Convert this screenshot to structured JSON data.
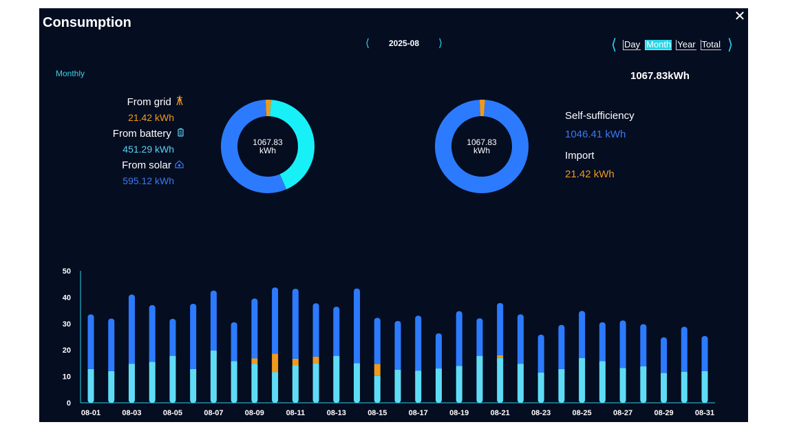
{
  "header": {
    "title": "Consumption",
    "close_icon": "close-icon"
  },
  "date_nav": {
    "label": "2025-08"
  },
  "range": {
    "options": [
      "Day",
      "Month",
      "Year",
      "Total"
    ],
    "active": "Month"
  },
  "monthly_label": "Monthly",
  "total_value": "1067.83kWh",
  "sources": [
    {
      "title": "From grid",
      "value": "21.42 kWh",
      "icon": "power-tower-icon",
      "color": "#ef9a1e"
    },
    {
      "title": "From battery",
      "value": "451.29 kWh",
      "icon": "battery-icon",
      "color": "#59d3ee"
    },
    {
      "title": "From solar",
      "value": "595.12 kWh",
      "icon": "house-solar-icon",
      "color": "#3a7af0"
    }
  ],
  "donut1": {
    "value": "1067.83",
    "unit": "kWh",
    "segments": [
      21.42,
      451.29,
      595.12
    ],
    "colors": [
      "#ef9a1e",
      "#18f0f8",
      "#2c7bff"
    ]
  },
  "donut2": {
    "value": "1067.83",
    "unit": "kWh",
    "segments": [
      21.42,
      1046.41
    ],
    "colors": [
      "#ef9a1e",
      "#2c7bff"
    ]
  },
  "summary": {
    "self_title": "Self-sufficiency",
    "self_value": "1046.41 kWh",
    "import_title": "Import",
    "import_value": "21.42 kWh"
  },
  "colors": {
    "solar": "#2c7bff",
    "battery": "#5fdcf5",
    "grid": "#ef9a1e",
    "accent": "#2ad4e6"
  },
  "chart_data": {
    "type": "bar",
    "stacked": true,
    "ylim": [
      0,
      50
    ],
    "yticks": [
      0,
      10,
      20,
      30,
      40,
      50
    ],
    "categories": [
      "08-01",
      "08-02",
      "08-03",
      "08-04",
      "08-05",
      "08-06",
      "08-07",
      "08-08",
      "08-09",
      "08-10",
      "08-11",
      "08-12",
      "08-13",
      "08-14",
      "08-15",
      "08-16",
      "08-17",
      "08-18",
      "08-19",
      "08-20",
      "08-21",
      "08-22",
      "08-23",
      "08-24",
      "08-25",
      "08-26",
      "08-27",
      "08-28",
      "08-29",
      "08-30",
      "08-31"
    ],
    "tick_labels": [
      "08-01",
      "08-03",
      "08-05",
      "08-07",
      "08-09",
      "08-11",
      "08-13",
      "08-15",
      "08-17",
      "08-19",
      "08-21",
      "08-23",
      "08-25",
      "08-27",
      "08-29",
      "08-31"
    ],
    "series": [
      {
        "values": [
          12.8,
          12,
          14.8,
          15.5,
          17.8,
          12.8,
          19.8,
          15.8,
          14.8,
          11.6,
          14.2,
          15,
          17.8,
          15,
          10.2,
          12.5,
          12.2,
          13,
          14,
          17.8,
          17,
          14.8,
          11.5,
          12.8,
          17,
          15.8,
          13.2,
          13.8,
          11.3,
          11.8,
          12
        ]
      },
      {
        "values": [
          0,
          0,
          0,
          0,
          0,
          0,
          0,
          0,
          2,
          7,
          2.5,
          2.5,
          0,
          0,
          4.5,
          0,
          0,
          0,
          0,
          0,
          1,
          0,
          0,
          0,
          0,
          0,
          0,
          0,
          0,
          0,
          0
        ]
      },
      {
        "values": [
          20.7,
          19.9,
          26.2,
          21.5,
          14,
          24.7,
          22.7,
          14.7,
          22.7,
          25.1,
          26.5,
          20.2,
          18.6,
          28.3,
          17.5,
          18.5,
          20.8,
          13.3,
          20.7,
          14.2,
          19.8,
          18.7,
          14.3,
          16.7,
          17.8,
          14.7,
          18,
          16,
          13.5,
          17,
          13.3
        ]
      }
    ]
  }
}
